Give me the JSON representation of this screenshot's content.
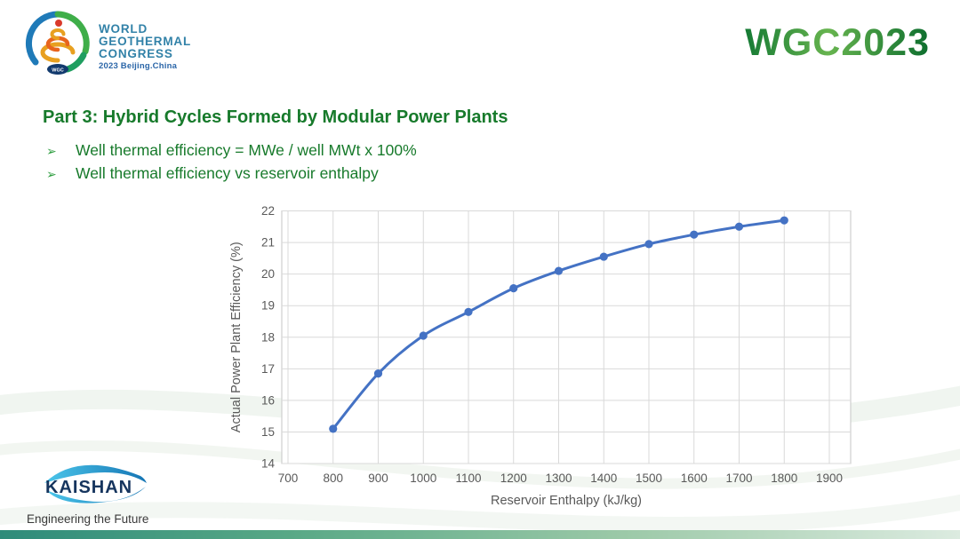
{
  "header": {
    "congress_logo": {
      "line1": "WORLD",
      "line2": "GEOTHERMAL",
      "line3": "CONGRESS",
      "subtitle": "2023 Beijing.China"
    },
    "brand": "WGC2023"
  },
  "slide": {
    "title": "Part 3: Hybrid Cycles Formed by Modular Power Plants",
    "bullet_marker": "➢",
    "bullets": [
      "Well thermal efficiency = MWe / well MWt x 100%",
      "Well thermal efficiency vs reservoir enthalpy"
    ]
  },
  "chart_data": {
    "type": "line",
    "x": [
      800,
      900,
      1000,
      1100,
      1200,
      1300,
      1400,
      1500,
      1600,
      1700,
      1800
    ],
    "values": [
      15.1,
      16.85,
      18.05,
      18.8,
      19.55,
      20.1,
      20.55,
      20.95,
      21.25,
      21.5,
      21.7
    ],
    "xlabel": "Reservoir  Enthalpy (kJ/kg)",
    "ylabel": "Actual Power Plant Efficiency (%)",
    "xlim": [
      700,
      1900
    ],
    "ylim": [
      14,
      22
    ],
    "x_ticks": [
      700,
      800,
      900,
      1000,
      1100,
      1200,
      1300,
      1400,
      1500,
      1600,
      1700,
      1800,
      1900
    ],
    "y_ticks": [
      14,
      15,
      16,
      17,
      18,
      19,
      20,
      21,
      22
    ],
    "grid": true,
    "legend": "none",
    "line_color": "#4472c4",
    "grid_color": "#d9d9d9",
    "border_color": "#c6c6c6",
    "tick_color": "#595959",
    "marker": "circle"
  },
  "footer": {
    "logo_text": "KAISHAN",
    "tagline": "Engineering the Future"
  },
  "colors": {
    "title_green": "#177a2b",
    "bullet_arrow_green": "#2f9e41",
    "brand_green_dark": "#0d6e2e",
    "brand_green_light": "#67b44f",
    "congress_text_blue": "#3282a8",
    "footer_bar_teal": "#2e8b7a",
    "footer_bar_light": "#dcebe0",
    "kaishan_navy": "#16355e"
  }
}
